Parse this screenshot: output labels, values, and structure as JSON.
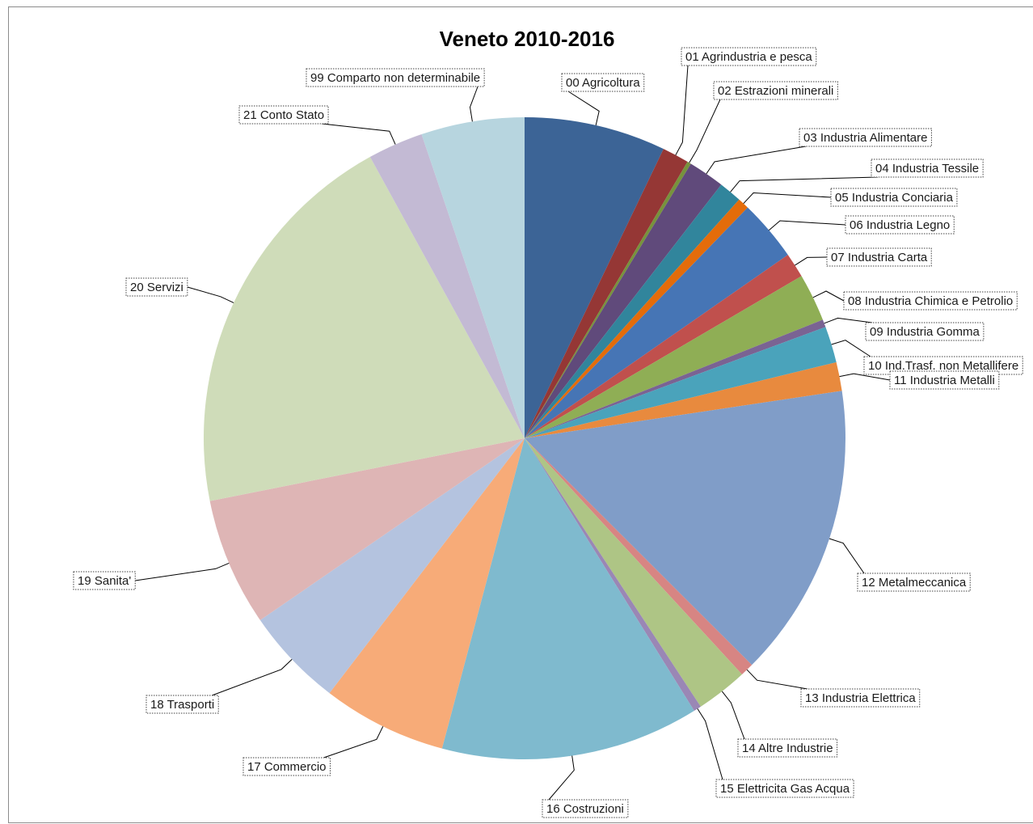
{
  "chart_data": {
    "type": "pie",
    "title": "Veneto 2010-2016",
    "start_angle_deg": 0,
    "direction": "clockwise",
    "slices": [
      {
        "label": "00 Agricoltura",
        "value": 7.4,
        "color": "#3c6496"
      },
      {
        "label": "01 Agrindustria e pesca",
        "value": 1.4,
        "color": "#953735"
      },
      {
        "label": "02 Estrazioni minerali",
        "value": 0.2,
        "color": "#77933c"
      },
      {
        "label": "03 Industria Alimentare",
        "value": 1.9,
        "color": "#604a7b"
      },
      {
        "label": "04 Industria Tessile",
        "value": 1.2,
        "color": "#31859c"
      },
      {
        "label": "05 Industria Conciaria",
        "value": 0.6,
        "color": "#e46c0a"
      },
      {
        "label": "06 Industria Legno",
        "value": 3.2,
        "color": "#4675b5"
      },
      {
        "label": "07 Industria Carta",
        "value": 1.3,
        "color": "#c0504d"
      },
      {
        "label": "08 Industria Chimica e Petrolio",
        "value": 2.5,
        "color": "#8fae55"
      },
      {
        "label": "09 Industria Gomma",
        "value": 0.4,
        "color": "#7a6393"
      },
      {
        "label": "10 Ind.Trasf. non Metallifere",
        "value": 1.9,
        "color": "#4aa3bb"
      },
      {
        "label": "11 Industria Metalli",
        "value": 1.5,
        "color": "#e88a3e"
      },
      {
        "label": "12 Metalmeccanica",
        "value": 15.4,
        "color": "#809dc8"
      },
      {
        "label": "13 Industria Elettrica",
        "value": 0.7,
        "color": "#d78583"
      },
      {
        "label": "14 Altre Industrie",
        "value": 2.7,
        "color": "#aec585"
      },
      {
        "label": "15 Elettricita Gas Acqua",
        "value": 0.4,
        "color": "#9a87b5"
      },
      {
        "label": "16 Costruzioni",
        "value": 13.5,
        "color": "#7fbace"
      },
      {
        "label": "17 Commercio",
        "value": 6.5,
        "color": "#f7ab78"
      },
      {
        "label": "18 Trasporti",
        "value": 5.2,
        "color": "#b4c3df"
      },
      {
        "label": "19 Sanita'",
        "value": 6.7,
        "color": "#deb5b5"
      },
      {
        "label": "20 Servizi",
        "value": 20.9,
        "color": "#cfdcb9"
      },
      {
        "label": "21 Conto Stato",
        "value": 2.9,
        "color": "#c3bad4"
      },
      {
        "label": "99 Comparto non determinabile",
        "value": 5.4,
        "color": "#b7d5df"
      }
    ]
  }
}
